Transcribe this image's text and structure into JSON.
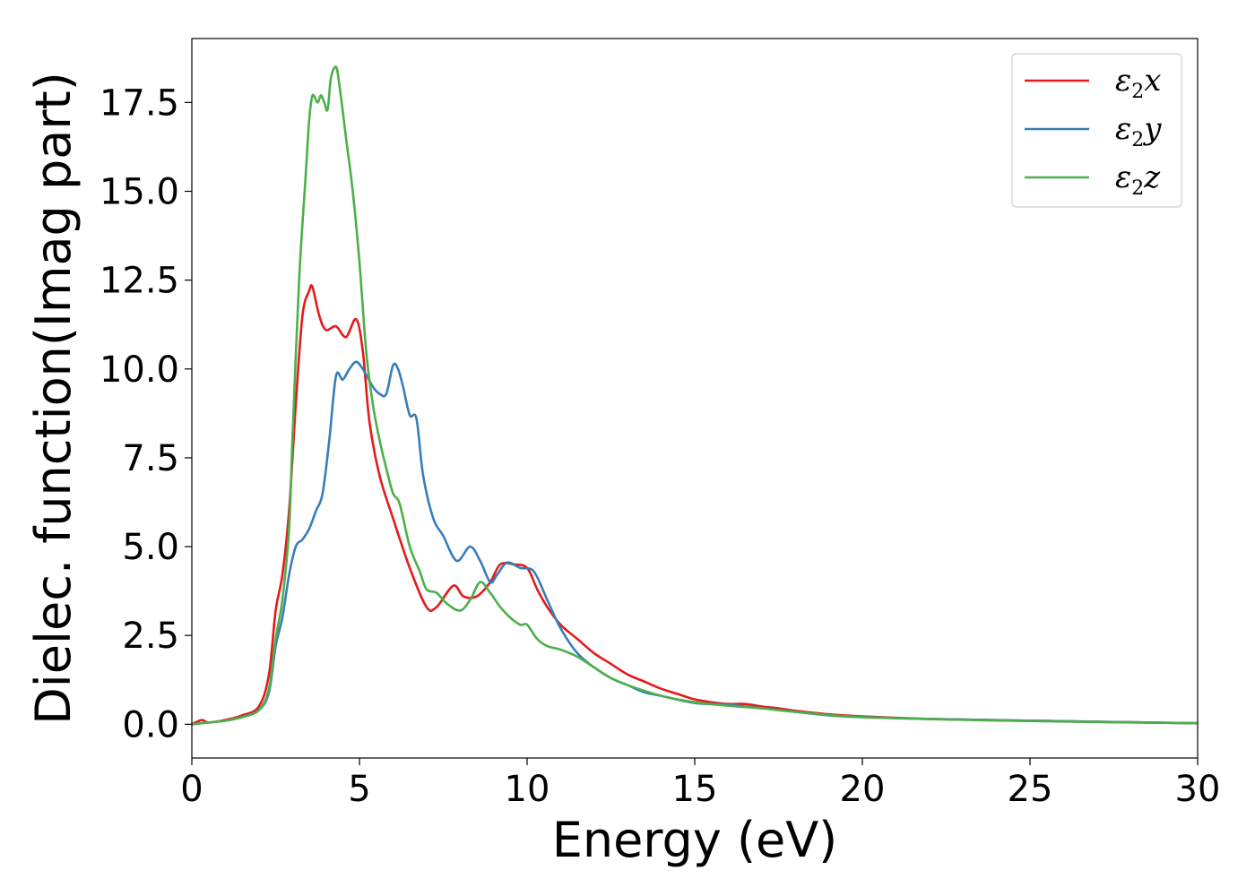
{
  "chart_data": {
    "type": "line",
    "title": "",
    "xlabel": "Energy (eV)",
    "ylabel": "Dielec. function(Imag part)",
    "xlim": [
      0,
      30
    ],
    "ylim": [
      -0.95,
      19.3
    ],
    "xticks": [
      0,
      5,
      10,
      15,
      20,
      25,
      30
    ],
    "xtick_labels": [
      "0",
      "5",
      "10",
      "15",
      "20",
      "25",
      "30"
    ],
    "yticks": [
      0,
      2.5,
      5,
      7.5,
      10,
      12.5,
      15,
      17.5
    ],
    "ytick_labels": [
      "0.0",
      "2.5",
      "5.0",
      "7.5",
      "10.0",
      "12.5",
      "15.0",
      "17.5"
    ],
    "grid": false,
    "legend_position": "top-right",
    "series": [
      {
        "name": "ε2x",
        "legend_base": "ε",
        "legend_sub": "2",
        "legend_suffix": "x",
        "color": "#e41a1c",
        "x": [
          0,
          0.3,
          0.5,
          1.0,
          1.5,
          2.0,
          2.3,
          2.5,
          2.7,
          2.9,
          3.1,
          3.3,
          3.5,
          3.6,
          3.8,
          4.0,
          4.3,
          4.6,
          4.9,
          5.1,
          5.3,
          5.6,
          6.0,
          6.5,
          7.0,
          7.3,
          7.8,
          8.1,
          8.5,
          8.9,
          9.2,
          9.6,
          10.0,
          10.3,
          10.6,
          11.0,
          11.5,
          12.0,
          12.5,
          13.0,
          13.5,
          14.0,
          14.5,
          15.0,
          15.5,
          16.0,
          16.5,
          17.0,
          17.5,
          18.0,
          19.0,
          20.0,
          22.0,
          25.0,
          27.0,
          30.0
        ],
        "y": [
          0.0,
          0.12,
          0.05,
          0.12,
          0.25,
          0.5,
          1.4,
          3.2,
          4.2,
          6.0,
          9.0,
          11.5,
          12.2,
          12.3,
          11.5,
          11.1,
          11.2,
          10.9,
          11.4,
          10.5,
          8.5,
          7.0,
          5.8,
          4.4,
          3.3,
          3.3,
          3.9,
          3.6,
          3.6,
          4.0,
          4.5,
          4.5,
          4.4,
          3.8,
          3.3,
          2.8,
          2.4,
          2.0,
          1.7,
          1.4,
          1.2,
          1.0,
          0.85,
          0.7,
          0.62,
          0.57,
          0.57,
          0.5,
          0.45,
          0.38,
          0.28,
          0.22,
          0.15,
          0.1,
          0.07,
          0.03
        ]
      },
      {
        "name": "ε2y",
        "legend_base": "ε",
        "legend_sub": "2",
        "legend_suffix": "y",
        "color": "#377eb8",
        "x": [
          0,
          0.5,
          1.0,
          1.5,
          2.0,
          2.3,
          2.5,
          2.7,
          2.9,
          3.1,
          3.3,
          3.5,
          3.7,
          3.9,
          4.1,
          4.3,
          4.5,
          4.7,
          4.9,
          5.1,
          5.4,
          5.6,
          5.8,
          6.0,
          6.15,
          6.3,
          6.5,
          6.7,
          6.9,
          7.2,
          7.5,
          7.9,
          8.3,
          8.6,
          8.9,
          9.1,
          9.4,
          9.8,
          10.2,
          10.6,
          11.0,
          11.5,
          12.0,
          12.5,
          13.0,
          13.5,
          14.0,
          15.0,
          16.0,
          17.0,
          18.0,
          19.0,
          20.0,
          22.0,
          25.0,
          30.0
        ],
        "y": [
          0.0,
          0.05,
          0.1,
          0.2,
          0.4,
          0.9,
          2.2,
          3.0,
          4.2,
          5.0,
          5.2,
          5.5,
          6.0,
          6.5,
          8.0,
          9.8,
          9.7,
          10.0,
          10.2,
          10.0,
          9.5,
          9.3,
          9.3,
          10.1,
          10.0,
          9.5,
          8.7,
          8.6,
          7.0,
          5.8,
          5.3,
          4.6,
          5.0,
          4.6,
          4.0,
          4.2,
          4.55,
          4.4,
          4.3,
          3.5,
          2.7,
          2.0,
          1.6,
          1.3,
          1.1,
          0.9,
          0.8,
          0.6,
          0.55,
          0.45,
          0.35,
          0.25,
          0.2,
          0.15,
          0.1,
          0.03
        ]
      },
      {
        "name": "ε2z",
        "legend_base": "ε",
        "legend_sub": "2",
        "legend_suffix": "z",
        "color": "#4daf4a",
        "x": [
          0,
          0.5,
          1.0,
          1.5,
          2.0,
          2.3,
          2.5,
          2.7,
          2.9,
          3.0,
          3.2,
          3.4,
          3.5,
          3.6,
          3.75,
          3.85,
          3.95,
          4.05,
          4.15,
          4.3,
          4.4,
          4.6,
          4.8,
          5.0,
          5.2,
          5.4,
          5.6,
          5.8,
          6.0,
          6.2,
          6.5,
          6.8,
          7.0,
          7.3,
          7.6,
          8.0,
          8.3,
          8.6,
          8.9,
          9.2,
          9.5,
          9.8,
          10.0,
          10.3,
          10.6,
          11.0,
          11.5,
          12.0,
          12.5,
          13.0,
          14.0,
          15.0,
          16.0,
          17.0,
          18.0,
          20.0,
          25.0,
          30.0
        ],
        "y": [
          0.0,
          0.05,
          0.1,
          0.2,
          0.4,
          1.0,
          2.4,
          3.5,
          5.5,
          8.0,
          12.5,
          15.5,
          17.0,
          17.7,
          17.5,
          17.7,
          17.5,
          17.3,
          18.2,
          18.5,
          18.0,
          16.5,
          15.0,
          13.0,
          10.5,
          9.0,
          8.0,
          7.2,
          6.5,
          6.2,
          5.0,
          4.3,
          3.8,
          3.7,
          3.4,
          3.2,
          3.5,
          4.0,
          3.7,
          3.3,
          3.0,
          2.8,
          2.8,
          2.4,
          2.2,
          2.1,
          1.9,
          1.6,
          1.3,
          1.1,
          0.8,
          0.62,
          0.52,
          0.45,
          0.35,
          0.2,
          0.09,
          0.03
        ]
      }
    ]
  }
}
